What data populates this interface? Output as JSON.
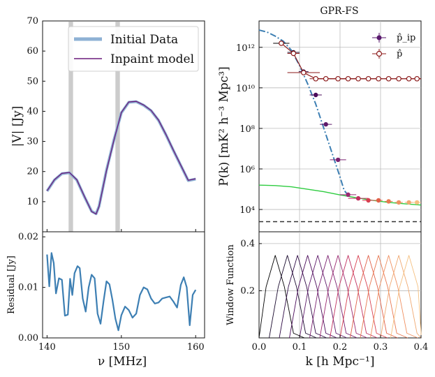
{
  "chart_data": [
    {
      "type": "line",
      "panel": "visibility",
      "ylabel": "|V| [Jy]",
      "ylim": [
        0,
        70
      ],
      "xlim": [
        139.4,
        161.2
      ],
      "yticks": [
        "10",
        "20",
        "30",
        "40",
        "50",
        "60",
        "70"
      ],
      "shaded_bands": [
        [
          142.9,
          143.5
        ],
        [
          149.2,
          149.8
        ]
      ],
      "legend": {
        "placement": "top-right",
        "entries": [
          "Initial Data",
          "Inpaint model"
        ]
      },
      "colors": {
        "initial": "#8eb1d4",
        "inpaint": "#6a1a7a",
        "band": "#999999"
      },
      "series": [
        {
          "name": "Initial Data",
          "x": [
            140,
            141,
            142,
            143,
            144,
            145,
            146,
            146.6,
            147,
            148,
            149,
            150,
            151,
            152,
            153,
            154,
            155,
            156,
            157,
            158,
            159,
            160
          ],
          "y": [
            13.5,
            17.2,
            19.3,
            19.6,
            17.2,
            11.8,
            6.8,
            6.0,
            8.5,
            20.5,
            30.5,
            39.5,
            43.0,
            43.2,
            42.0,
            40.2,
            37.0,
            32.2,
            27.0,
            22.0,
            17.0,
            17.5
          ]
        },
        {
          "name": "Inpaint model",
          "x": [
            140,
            141,
            142,
            143,
            144,
            145,
            146,
            146.6,
            147,
            148,
            149,
            150,
            151,
            152,
            153,
            154,
            155,
            156,
            157,
            158,
            159,
            160
          ],
          "y": [
            13.6,
            17.3,
            19.4,
            19.7,
            17.3,
            11.9,
            6.7,
            5.9,
            8.4,
            20.3,
            30.4,
            39.6,
            43.1,
            43.3,
            42.1,
            40.3,
            37.1,
            32.3,
            27.1,
            22.1,
            17.1,
            17.6
          ]
        }
      ]
    },
    {
      "type": "line",
      "panel": "residual",
      "xlabel": "ν [MHz]",
      "ylabel": "Residual [Jy]",
      "xlim": [
        139.4,
        161.2
      ],
      "ylim": [
        0,
        0.021
      ],
      "xticks": [
        "140",
        "150",
        "160"
      ],
      "yticks": [
        "0.00",
        "0.01",
        "0.02"
      ],
      "colors": {
        "line": "#3d7fb3"
      },
      "x": [
        140,
        140.3,
        140.6,
        140.9,
        141.2,
        141.6,
        142,
        142.4,
        142.8,
        143.1,
        143.4,
        143.7,
        144.1,
        144.4,
        144.8,
        145.2,
        145.6,
        146,
        146.4,
        146.8,
        147.2,
        147.6,
        148,
        148.4,
        148.8,
        149.2,
        149.6,
        150,
        150.5,
        151,
        151.5,
        152,
        152.5,
        153,
        153.5,
        154,
        154.5,
        155,
        155.5,
        156,
        156.5,
        157,
        157.5,
        158,
        158.4,
        158.8,
        159.2,
        159.6,
        160
      ],
      "y": [
        0.0165,
        0.0102,
        0.0168,
        0.0148,
        0.0088,
        0.0118,
        0.0115,
        0.0044,
        0.0046,
        0.0117,
        0.0085,
        0.0128,
        0.0142,
        0.0138,
        0.0078,
        0.0052,
        0.01,
        0.0125,
        0.0118,
        0.0048,
        0.0028,
        0.0072,
        0.0112,
        0.0106,
        0.0075,
        0.0038,
        0.0015,
        0.0045,
        0.0062,
        0.0055,
        0.004,
        0.0048,
        0.0085,
        0.01,
        0.0096,
        0.0078,
        0.0068,
        0.007,
        0.0078,
        0.008,
        0.0082,
        0.0072,
        0.006,
        0.0105,
        0.012,
        0.01,
        0.0025,
        0.0085,
        0.0095
      ]
    },
    {
      "type": "scatter",
      "panel": "power_spectrum",
      "title": "GPR-FS",
      "ylabel": "P(k) [mK² h⁻³ Mpc³]",
      "xlim": [
        0,
        0.4
      ],
      "yscale": "log",
      "ylim_log10": [
        2.9,
        13.3
      ],
      "yticks": [
        "10¹²",
        "10¹⁰",
        "10⁸",
        "10⁶",
        "10⁴"
      ],
      "legend": {
        "placement": "top-right",
        "entries": [
          "p̂_ip",
          "p̂"
        ]
      },
      "colors": {
        "p_ip": "#5a1a6e",
        "p_hat": "#8b1a1a",
        "dashdot": "#3d7fb3",
        "green": "#2ecc40",
        "dashed": "#333333"
      },
      "series": [
        {
          "name": "p̂_ip",
          "k": [
            0.055,
            0.085,
            0.11,
            0.14,
            0.165,
            0.195,
            0.22,
            0.245,
            0.27,
            0.295,
            0.32,
            0.345,
            0.37,
            0.39
          ],
          "log10_p": [
            12.2,
            11.75,
            10.8,
            9.65,
            8.2,
            6.45,
            4.73,
            4.55,
            4.45,
            4.45,
            4.4,
            4.35,
            4.35,
            4.35
          ],
          "xerr": [
            0.02,
            0.015,
            0.012,
            0.015,
            0.015,
            0.02,
            0.02,
            0.025,
            0.015,
            0.01,
            0.01,
            0.01,
            0.01,
            0.01
          ],
          "point_colors": [
            "#000000",
            "#1a0a2e",
            "#2e0a45",
            "#4a0a5a",
            "#5e1a6a",
            "#7a2070",
            "#9a2870",
            "#c03060",
            "#d84050",
            "#e06048",
            "#e87850",
            "#f09060",
            "#f0a870",
            "#f5c080"
          ]
        },
        {
          "name": "p̂",
          "k": [
            0.055,
            0.085,
            0.11,
            0.14,
            0.165,
            0.195,
            0.22,
            0.245,
            0.27,
            0.295,
            0.32,
            0.345,
            0.37,
            0.39
          ],
          "log10_p": [
            12.2,
            11.7,
            10.75,
            10.45,
            10.45,
            10.45,
            10.45,
            10.45,
            10.45,
            10.45,
            10.45,
            10.45,
            10.45,
            10.45
          ],
          "xerr": [
            0.02,
            0.015,
            0.04,
            0.015,
            0.015,
            0.02,
            0.02,
            0.025,
            0.015,
            0.01,
            0.01,
            0.01,
            0.01,
            0.01
          ]
        },
        {
          "name": "dashdot",
          "k": [
            0,
            0.02,
            0.04,
            0.06,
            0.08,
            0.1,
            0.12,
            0.14,
            0.16,
            0.18,
            0.2,
            0.21,
            0.22
          ],
          "log10_p": [
            12.85,
            12.75,
            12.55,
            12.3,
            11.85,
            11.1,
            10.2,
            9.2,
            8.0,
            6.8,
            5.6,
            4.95,
            4.7
          ]
        },
        {
          "name": "green",
          "k": [
            0,
            0.04,
            0.08,
            0.12,
            0.16,
            0.2,
            0.24,
            0.28,
            0.32,
            0.36,
            0.4
          ],
          "log10_p": [
            5.2,
            5.18,
            5.12,
            5.0,
            4.88,
            4.72,
            4.58,
            4.45,
            4.35,
            4.28,
            4.22
          ]
        }
      ],
      "hline_log10": 3.4
    },
    {
      "type": "line",
      "panel": "window_function",
      "ylabel": "Window Function",
      "xlabel": "k [h Mpc⁻¹]",
      "xlim": [
        0,
        0.4
      ],
      "ylim": [
        0,
        0.45
      ],
      "xticks": [
        "0.0",
        "0.1",
        "0.2",
        "0.3",
        "0.4"
      ],
      "yticks": [
        "0.2",
        "0.4"
      ],
      "peaks_k": [
        0.04,
        0.07,
        0.095,
        0.12,
        0.145,
        0.17,
        0.195,
        0.22,
        0.245,
        0.27,
        0.295,
        0.32,
        0.345,
        0.37
      ],
      "peak_height": 0.35,
      "colors": [
        "#000000",
        "#1a0a2e",
        "#2e0a45",
        "#4a0a5a",
        "#5e1a6a",
        "#7a2070",
        "#9a2870",
        "#c03060",
        "#d84050",
        "#e06048",
        "#e87850",
        "#f09060",
        "#f0a870",
        "#f5c080"
      ]
    }
  ]
}
